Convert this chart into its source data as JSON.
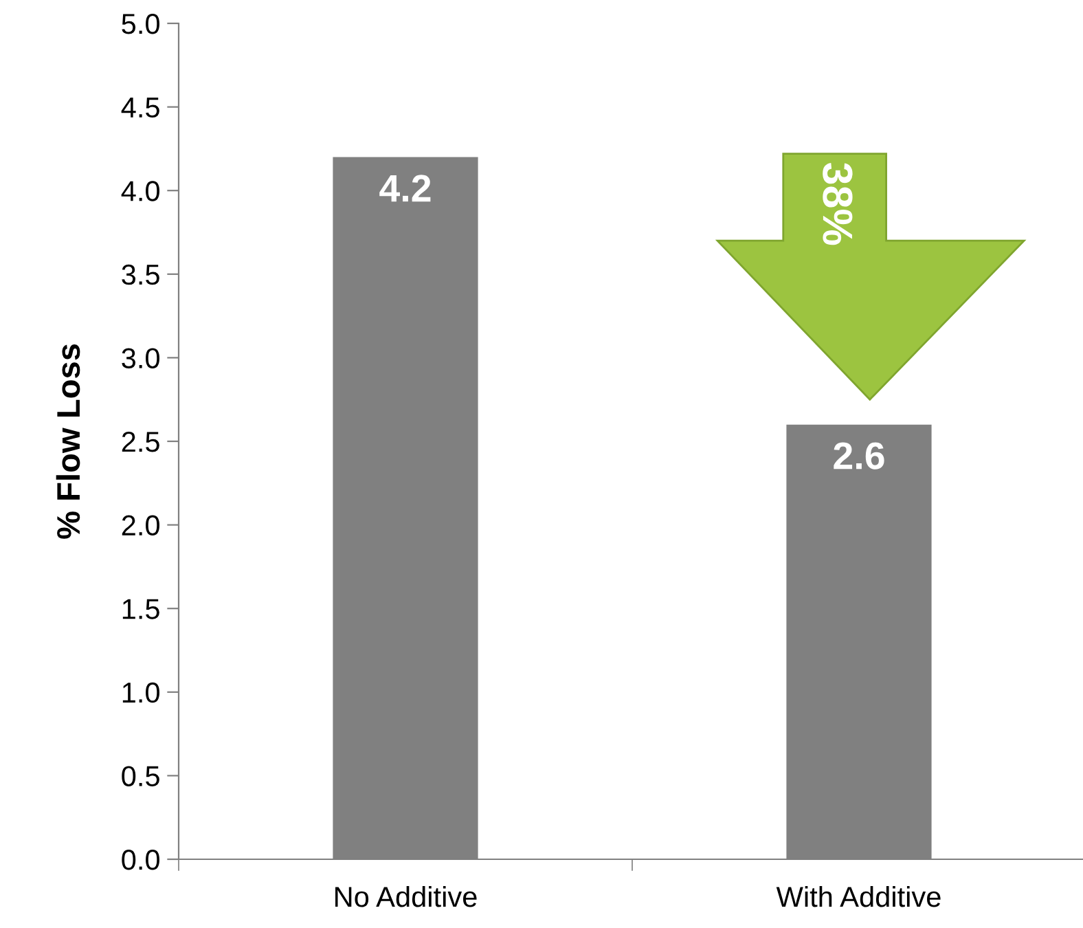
{
  "chart_data": {
    "type": "bar",
    "ylabel": "% Flow Loss",
    "categories": [
      "No Additive",
      "With Additive"
    ],
    "values": [
      4.2,
      2.6
    ],
    "color": "#808080",
    "ylim": [
      0,
      5
    ],
    "yticks": [
      {
        "value": 0,
        "label": "0.0"
      },
      {
        "value": 0.5,
        "label": "0.5"
      },
      {
        "value": 1,
        "label": "1.0"
      },
      {
        "value": 1.5,
        "label": "1.5"
      },
      {
        "value": 2,
        "label": "2.0"
      },
      {
        "value": 2.5,
        "label": "2.5"
      },
      {
        "value": 3,
        "label": "3.0"
      },
      {
        "value": 3.5,
        "label": "3.5"
      },
      {
        "value": 4,
        "label": "4.0"
      },
      {
        "value": 4.5,
        "label": "4.5"
      },
      {
        "value": 5,
        "label": "5.0"
      }
    ],
    "data_labels": true,
    "grid": false,
    "annotations": [
      "38%"
    ]
  }
}
